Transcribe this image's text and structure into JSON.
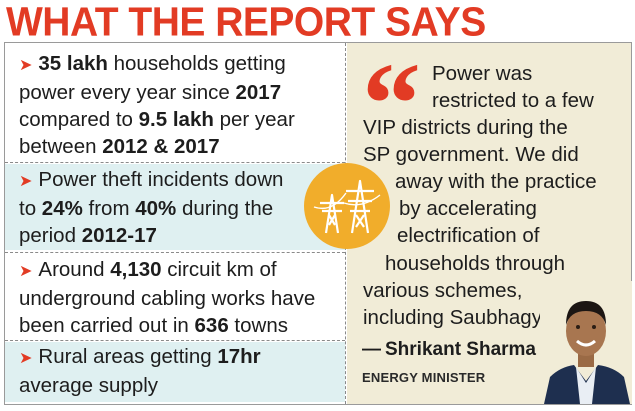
{
  "headline": "WHAT THE REPORT SAYS",
  "points": [
    {
      "lines": [
        [
          {
            "b": "35 lakh"
          },
          {
            "t": " households getting"
          }
        ],
        [
          {
            "t": "power every year since "
          },
          {
            "b": "2017"
          }
        ],
        [
          {
            "t": "compared to "
          },
          {
            "b": "9.5 lakh"
          },
          {
            "t": " per year"
          }
        ],
        [
          {
            "t": "between "
          },
          {
            "b": "2012 & 2017"
          }
        ]
      ]
    },
    {
      "lines": [
        [
          {
            "t": "Power theft incidents down"
          }
        ],
        [
          {
            "t": "to "
          },
          {
            "b": "24%"
          },
          {
            "t": " from "
          },
          {
            "b": "40%"
          },
          {
            "t": " during the"
          }
        ],
        [
          {
            "t": "period "
          },
          {
            "b": "2012-17"
          }
        ]
      ]
    },
    {
      "lines": [
        [
          {
            "t": "Around "
          },
          {
            "b": "4,130"
          },
          {
            "t": " circuit km of"
          }
        ],
        [
          {
            "t": "underground cabling works have"
          }
        ],
        [
          {
            "t": "been carried out in "
          },
          {
            "b": "636"
          },
          {
            "t": " towns"
          }
        ]
      ]
    },
    {
      "lines": [
        [
          {
            "t": "Rural areas getting "
          },
          {
            "b": "17hr"
          }
        ],
        [
          {
            "t": "average supply"
          }
        ]
      ]
    }
  ],
  "quote": {
    "lines": [
      "Power was",
      "restricted to a few",
      "VIP districts during the",
      "SP government. We did",
      "away with the practice",
      "by accelerating",
      "electrification of",
      "households through",
      "various schemes,",
      "including Saubhagya"
    ]
  },
  "speaker": {
    "name": "Shrikant Sharma",
    "role": "ENERGY MINISTER"
  },
  "colors": {
    "accent": "#e23b24",
    "tint": "#dff0f1",
    "panel": "#f1ecd7",
    "badge": "#f1ad2b"
  },
  "icons": {
    "bullet": "arrow-bullet-icon",
    "badge": "power-tower-icon"
  }
}
